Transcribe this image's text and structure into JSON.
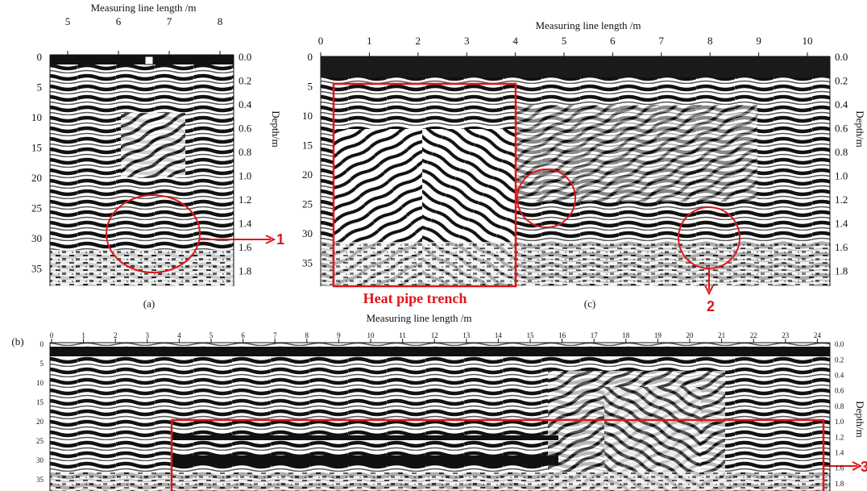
{
  "panel_a": {
    "label": "(a)",
    "x_axis_title": "Measuring line length /m",
    "x_ticks": [
      "5",
      "6",
      "7",
      "8"
    ],
    "left_ticks": [
      "0",
      "5",
      "10",
      "15",
      "20",
      "25",
      "30",
      "35"
    ],
    "right_ticks": [
      "0.0",
      "0.2",
      "0.4",
      "0.6",
      "0.8",
      "1.0",
      "1.2",
      "1.4",
      "1.6",
      "1.8"
    ],
    "right_axis_title": "Depth/m",
    "marker": "1"
  },
  "panel_c": {
    "label": "(c)",
    "x_axis_title": "Measuring line length /m",
    "x_ticks": [
      "0",
      "1",
      "2",
      "3",
      "4",
      "5",
      "6",
      "7",
      "8",
      "9",
      "10"
    ],
    "left_ticks": [
      "0",
      "5",
      "10",
      "15",
      "20",
      "25",
      "30",
      "35"
    ],
    "right_ticks": [
      "0.0",
      "0.2",
      "0.4",
      "0.6",
      "0.8",
      "1.0",
      "1.2",
      "1.4",
      "1.6",
      "1.8"
    ],
    "right_axis_title": "Depth/m",
    "box_label": "Heat pipe trench",
    "marker": "2"
  },
  "panel_b": {
    "label": "(b)",
    "x_axis_title": "Measuring line length /m",
    "x_ticks": [
      "0",
      "1",
      "2",
      "3",
      "4",
      "5",
      "6",
      "7",
      "8",
      "9",
      "10",
      "11",
      "12",
      "13",
      "14",
      "15",
      "16",
      "17",
      "18",
      "19",
      "20",
      "21",
      "22",
      "23",
      "24"
    ],
    "left_ticks": [
      "0",
      "5",
      "10",
      "15",
      "20",
      "25",
      "30",
      "35"
    ],
    "right_ticks": [
      "0.0",
      "0.2",
      "0.4",
      "0.6",
      "0.8",
      "1.0",
      "1.2",
      "1.4",
      "1.6",
      "1.8"
    ],
    "right_axis_title": "Depth/m",
    "marker": "3"
  }
}
